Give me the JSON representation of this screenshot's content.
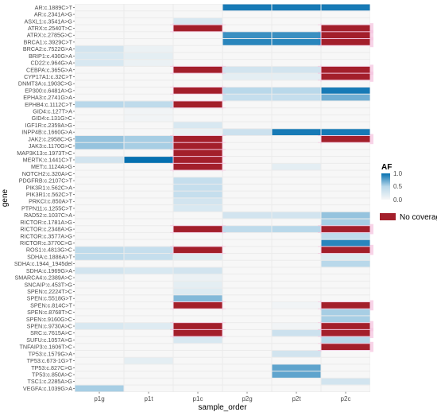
{
  "chart_data": {
    "type": "heatmap",
    "xlabel": "sample_order",
    "ylabel": "gene",
    "columns": [
      "p1g",
      "p1t",
      "p1c",
      "p2g",
      "p2t",
      "p2c"
    ],
    "rows": [
      "AR:c.1889C>T",
      "AR:c.2341A>G",
      "ASXL1:c.3541A>G",
      "ATRX:c.2540T>C",
      "ATRX:c.2785G>C",
      "BRCA1:c.3929C>T",
      "BRCA2:c.7522G>A",
      "BRIP1:c.430G>A",
      "CD22:c.964G>A",
      "CEBPA:c.365G>A",
      "CYP17A1:c.32C>T",
      "DNMT3A:c.1903C>G",
      "EP300:c.6481A>G",
      "EPHA3:c.2741G>A",
      "EPHB4:c.1112C>T",
      "GID4:c.127T>A",
      "GID4:c.131G>C",
      "IGF1R:c.2359A>G",
      "INPP4B:c.1660G>A",
      "JAK2:c.2958C>G",
      "JAK3:c.1170G>C",
      "MAP3K13:c.1973T>C",
      "MERTK:c.1441C>T",
      "MET:c.1124A>G",
      "NOTCH2:c.320A>C",
      "PDGFRB:c.2107C>T",
      "PIK3R1:c.562C>A",
      "PIK3R1:c.562C>T",
      "PRKCI:c.850A>T",
      "PTPN11:c.1255C>T",
      "RAD52:c.1037C>A",
      "RICTOR:c.1781A>G",
      "RICTOR:c.2348A>G",
      "RICTOR:c.3577A>G",
      "RICTOR:c.3770C>G",
      "ROS1:c.4813G>C",
      "SDHA:c.1886A>T",
      "SDHA:c.1944_1945del",
      "SDHA:c.1969G>A",
      "SMARCA4:c.2389A>C",
      "SNCAIP:c.453T>G",
      "SPEN:c.2224T>C",
      "SPEN:c.5518G>T",
      "SPEN:c.814C>T",
      "SPEN:c.8768T>C",
      "SPEN:c.9160G>C",
      "SPEN:c.9730A>C",
      "SRC:c.7615A>C",
      "SUFU:c.1057A>G",
      "TNFAIP3:c.1606T>C",
      "TP53:c.1579G>A",
      "TP53:c.673-1G>T",
      "TP53:c.827C>G",
      "TP53:c.850A>C",
      "TSC1:c.2285A>G",
      "VEGFA:c.1039G>A"
    ],
    "af_values": [
      [
        0,
        0,
        0,
        0.95,
        0.95,
        0.95
      ],
      [
        0,
        0,
        0,
        0,
        0,
        0
      ],
      [
        0,
        0,
        0.25,
        0,
        0,
        0
      ],
      [
        0,
        0,
        "NC",
        0,
        0,
        "NC"
      ],
      [
        0,
        0,
        0,
        0.85,
        0.85,
        "NC"
      ],
      [
        0,
        0,
        0,
        0.9,
        0.9,
        "NC"
      ],
      [
        0.3,
        0.1,
        0,
        0,
        0,
        0
      ],
      [
        0.25,
        0.15,
        0,
        0,
        0,
        0
      ],
      [
        0.25,
        0.1,
        0,
        0,
        0,
        0
      ],
      [
        0,
        0,
        "NC",
        0.3,
        0.3,
        "NC"
      ],
      [
        0,
        0,
        0,
        0.15,
        0.15,
        "NC"
      ],
      [
        0,
        0,
        0,
        0,
        0,
        0
      ],
      [
        0,
        0,
        "NC",
        0.5,
        0.5,
        0.95
      ],
      [
        0,
        0,
        0,
        0.4,
        0.4,
        0.7
      ],
      [
        0.5,
        0.45,
        "NC",
        0,
        0,
        0
      ],
      [
        0,
        0.05,
        0,
        0,
        0,
        0
      ],
      [
        0,
        0.05,
        0,
        0,
        0,
        0
      ],
      [
        0,
        0,
        0.25,
        0,
        0,
        0
      ],
      [
        0,
        0,
        0.1,
        0.35,
        0.95,
        0.95
      ],
      [
        0.6,
        0.55,
        "NC",
        0,
        0,
        "NC"
      ],
      [
        0.6,
        0.55,
        "NC",
        0,
        0,
        0
      ],
      [
        0,
        0,
        "NC",
        0,
        0,
        0
      ],
      [
        0.3,
        1.0,
        "NC",
        0,
        0,
        0
      ],
      [
        0,
        0,
        "NC",
        0,
        0.15,
        0
      ],
      [
        0,
        0,
        0,
        0,
        0,
        0
      ],
      [
        0,
        0,
        0.4,
        0,
        0,
        0
      ],
      [
        0,
        0,
        0.4,
        0,
        0,
        0
      ],
      [
        0,
        0,
        0.4,
        0,
        0,
        0
      ],
      [
        0,
        0,
        0.3,
        0,
        0,
        0
      ],
      [
        0,
        0,
        0.25,
        0,
        0,
        0
      ],
      [
        0,
        0,
        0,
        0.3,
        0.3,
        0.6
      ],
      [
        0,
        0,
        0,
        0,
        0,
        0.55
      ],
      [
        0,
        0,
        "NC",
        0.45,
        0.5,
        "NC"
      ],
      [
        0,
        0,
        0,
        0,
        0,
        0.45
      ],
      [
        0,
        0,
        0,
        0,
        0,
        0.9
      ],
      [
        0.45,
        0.4,
        "NC",
        0,
        0,
        "NC"
      ],
      [
        0.45,
        0.4,
        0.2,
        0,
        0,
        0.2
      ],
      [
        0,
        0,
        0,
        0,
        0,
        0.5
      ],
      [
        0.3,
        0.25,
        0.3,
        0,
        0,
        0
      ],
      [
        0.05,
        0,
        0.1,
        0,
        0,
        0
      ],
      [
        0,
        0,
        0.15,
        0,
        0,
        0
      ],
      [
        0,
        0,
        0.2,
        0,
        0,
        0
      ],
      [
        0,
        0,
        0.65,
        0,
        0,
        0
      ],
      [
        0,
        0,
        "NC",
        0,
        0.05,
        "NC"
      ],
      [
        0,
        0,
        0,
        0,
        0,
        0.55
      ],
      [
        0,
        0,
        0,
        0,
        0,
        0.55
      ],
      [
        0.25,
        0.2,
        "NC",
        0,
        0.05,
        "NC"
      ],
      [
        0,
        0,
        "NC",
        0,
        0.35,
        "NC"
      ],
      [
        0,
        0,
        0.25,
        0,
        0,
        0.5
      ],
      [
        0,
        0,
        0,
        0,
        0,
        "NC"
      ],
      [
        0,
        0,
        0,
        0,
        0.3,
        0
      ],
      [
        0,
        0.15,
        0,
        0,
        0,
        0
      ],
      [
        0,
        0,
        0,
        0,
        0.75,
        0
      ],
      [
        0,
        0,
        0,
        0,
        0.75,
        0
      ],
      [
        0,
        0,
        0,
        0,
        0,
        0.3
      ],
      [
        0.55,
        0,
        0,
        0,
        0,
        0
      ]
    ],
    "legend": {
      "title": "AF",
      "ticks": [
        "1.0",
        "0.5",
        "0.0"
      ],
      "no_coverage_label": "No coverage"
    },
    "colors": {
      "low": "#f7f7f7",
      "mid": "#b9d8ea",
      "high": "#0570b0",
      "no_coverage": "#a31f2b",
      "no_coverage_halo": "#f5c6e0",
      "panel": "#ebebeb",
      "grid": "#ffffff"
    },
    "grid": true,
    "legend_position": "right"
  }
}
